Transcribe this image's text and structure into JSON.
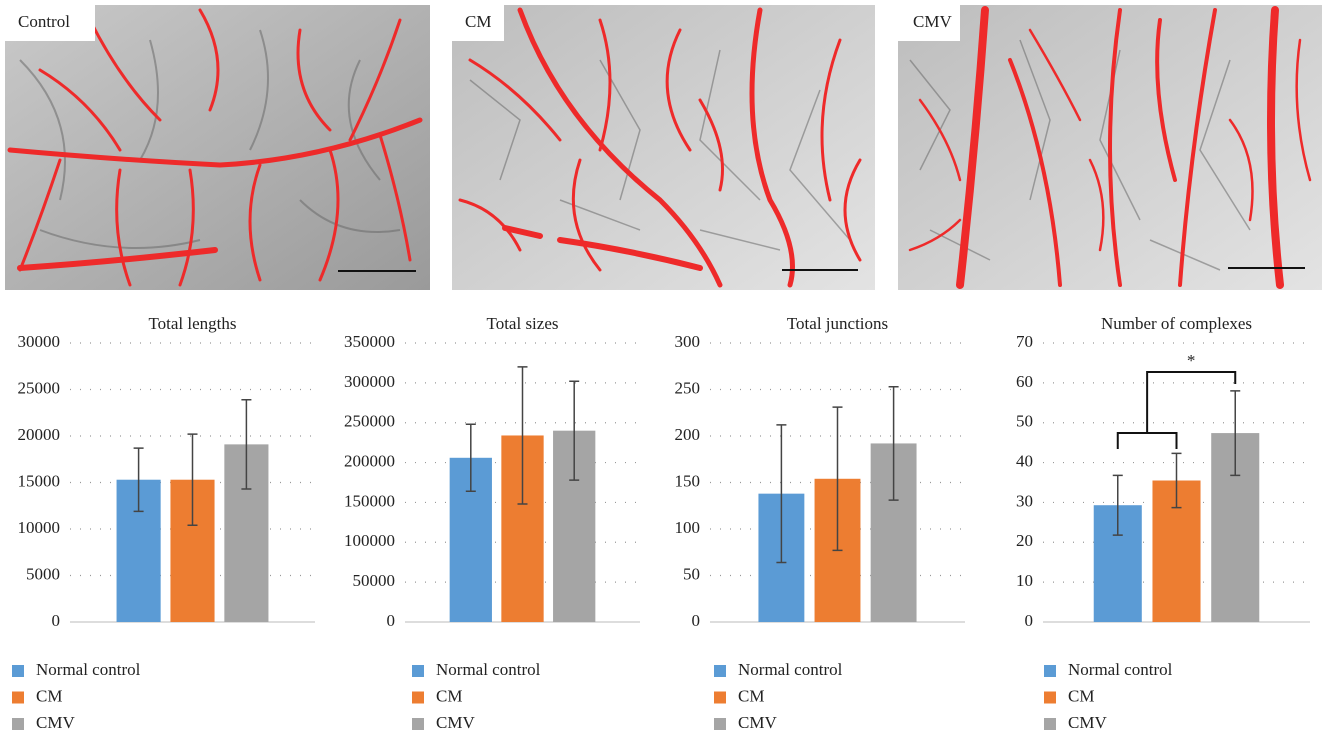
{
  "panels": [
    "Control",
    "CM",
    "CMV"
  ],
  "chart_data": [
    {
      "type": "bar",
      "title": "Total lengths",
      "ylim": [
        0,
        30000
      ],
      "yticks": [
        0,
        5000,
        10000,
        15000,
        20000,
        25000,
        30000
      ],
      "grid": true,
      "series": [
        {
          "name": "Normal control",
          "color": "#5b9bd5",
          "values": [
            15300
          ],
          "errors": [
            3400
          ]
        },
        {
          "name": "CM",
          "color": "#ed7d31",
          "values": [
            15300
          ],
          "errors": [
            4900
          ]
        },
        {
          "name": "CMV",
          "color": "#a5a5a5",
          "values": [
            19100
          ],
          "errors": [
            4800
          ]
        }
      ]
    },
    {
      "type": "bar",
      "title": "Total sizes",
      "ylim": [
        0,
        350000
      ],
      "yticks": [
        0,
        50000,
        100000,
        150000,
        200000,
        250000,
        300000,
        350000
      ],
      "grid": true,
      "series": [
        {
          "name": "Normal control",
          "color": "#5b9bd5",
          "values": [
            206000
          ],
          "errors": [
            42000
          ]
        },
        {
          "name": "CM",
          "color": "#ed7d31",
          "values": [
            234000
          ],
          "errors": [
            86000
          ]
        },
        {
          "name": "CMV",
          "color": "#a5a5a5",
          "values": [
            240000
          ],
          "errors": [
            62000
          ]
        }
      ]
    },
    {
      "type": "bar",
      "title": "Total junctions",
      "ylim": [
        0,
        300
      ],
      "yticks": [
        0,
        50,
        100,
        150,
        200,
        250,
        300
      ],
      "grid": true,
      "series": [
        {
          "name": "Normal control",
          "color": "#5b9bd5",
          "values": [
            138
          ],
          "errors": [
            74
          ]
        },
        {
          "name": "CM",
          "color": "#ed7d31",
          "values": [
            154
          ],
          "errors": [
            77
          ]
        },
        {
          "name": "CMV",
          "color": "#a5a5a5",
          "values": [
            192
          ],
          "errors": [
            61
          ]
        }
      ]
    },
    {
      "type": "bar",
      "title": "Number of complexes",
      "ylim": [
        0,
        70
      ],
      "yticks": [
        0,
        10,
        20,
        30,
        40,
        50,
        60,
        70
      ],
      "grid": true,
      "annotation": "*",
      "series": [
        {
          "name": "Normal control",
          "color": "#5b9bd5",
          "values": [
            29.3
          ],
          "errors": [
            7.5
          ]
        },
        {
          "name": "CM",
          "color": "#ed7d31",
          "values": [
            35.5
          ],
          "errors": [
            6.8
          ]
        },
        {
          "name": "CMV",
          "color": "#a5a5a5",
          "values": [
            47.4
          ],
          "errors": [
            10.6
          ]
        }
      ]
    }
  ]
}
